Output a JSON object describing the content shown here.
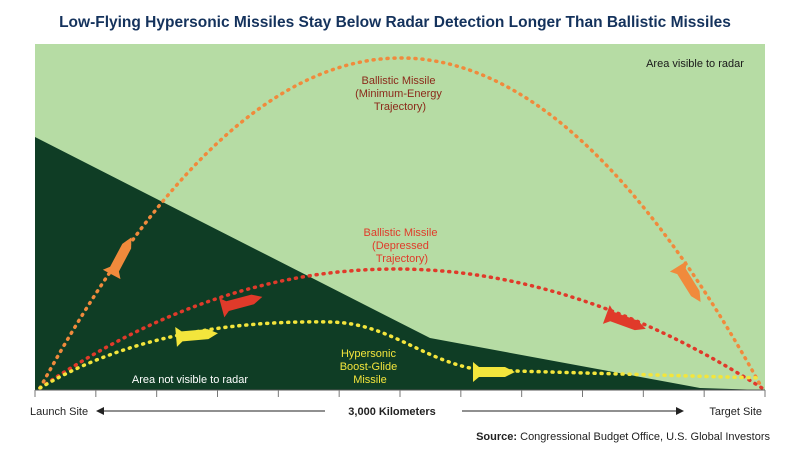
{
  "header": {
    "title": "Low-Flying Hypersonic Missiles Stay Below Radar Detection Longer Than Ballistic Missiles"
  },
  "regions": {
    "visible": "Area visible to radar",
    "not_visible": "Area not visible to radar"
  },
  "trajectories": [
    {
      "lines": [
        "Ballistic Missile",
        "(Minimum-Energy",
        "Trajectory)"
      ]
    },
    {
      "lines": [
        "Ballistic Missile",
        "(Depressed",
        "Trajectory)"
      ]
    },
    {
      "lines": [
        "Hypersonic",
        "Boost-Glide",
        "Missile"
      ]
    }
  ],
  "axis": {
    "start": "Launch Site",
    "distance": "3,000 Kilometers",
    "end": "Target Site"
  },
  "source": {
    "label": "Source:",
    "text": "Congressional Budget Office, U.S. Global Investors"
  }
}
